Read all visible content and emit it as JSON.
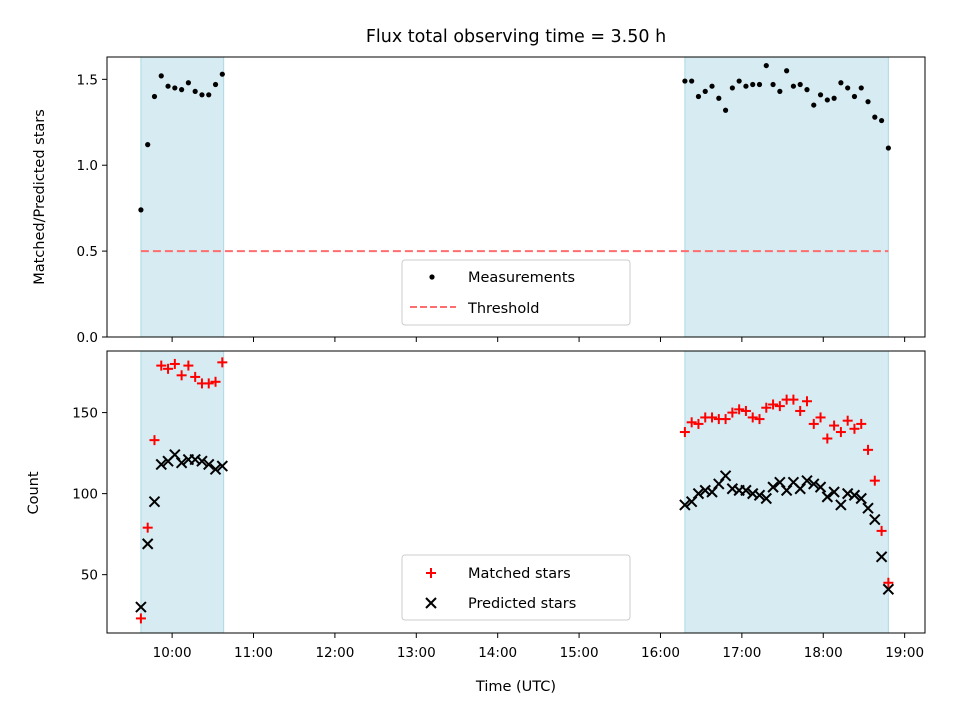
{
  "colors": {
    "shade": "#add8e6",
    "threshold": "#ff6e6e",
    "matched": "#ff0000",
    "predicted": "#000000",
    "measurement": "#000000"
  },
  "chart_data": [
    {
      "type": "scatter",
      "title": "Flux total observing time = 3.50 h",
      "ylabel": "Matched/Predicted stars",
      "xlabel": "",
      "xlim": [
        "09:12",
        "19:15"
      ],
      "ylim": [
        0,
        1.63
      ],
      "yticks": [
        0.0,
        0.5,
        1.0,
        1.5
      ],
      "ytick_labels": [
        "0.0",
        "0.5",
        "1.0",
        "1.5"
      ],
      "shaded_spans": [
        [
          "09:37",
          "10:38"
        ],
        [
          "16:18",
          "18:48"
        ]
      ],
      "legend_position": "lower center",
      "legend": [
        {
          "label": "Measurements",
          "marker": "dot"
        },
        {
          "label": "Threshold",
          "marker": "dashed-line"
        }
      ],
      "threshold": {
        "name": "Threshold",
        "y": 0.5,
        "x_from": "09:37",
        "x_to": "18:48"
      },
      "series": [
        {
          "name": "Measurements",
          "points": [
            [
              "09:37",
              0.74
            ],
            [
              "09:42",
              1.12
            ],
            [
              "09:47",
              1.4
            ],
            [
              "09:52",
              1.52
            ],
            [
              "09:57",
              1.46
            ],
            [
              "10:02",
              1.45
            ],
            [
              "10:07",
              1.44
            ],
            [
              "10:12",
              1.48
            ],
            [
              "10:17",
              1.43
            ],
            [
              "10:22",
              1.41
            ],
            [
              "10:27",
              1.41
            ],
            [
              "10:32",
              1.47
            ],
            [
              "10:37",
              1.53
            ],
            [
              "16:18",
              1.49
            ],
            [
              "16:23",
              1.49
            ],
            [
              "16:28",
              1.4
            ],
            [
              "16:33",
              1.43
            ],
            [
              "16:38",
              1.46
            ],
            [
              "16:43",
              1.39
            ],
            [
              "16:48",
              1.32
            ],
            [
              "16:53",
              1.45
            ],
            [
              "16:58",
              1.49
            ],
            [
              "17:03",
              1.46
            ],
            [
              "17:08",
              1.47
            ],
            [
              "17:13",
              1.47
            ],
            [
              "17:18",
              1.58
            ],
            [
              "17:23",
              1.47
            ],
            [
              "17:28",
              1.43
            ],
            [
              "17:33",
              1.55
            ],
            [
              "17:38",
              1.46
            ],
            [
              "17:43",
              1.47
            ],
            [
              "17:48",
              1.44
            ],
            [
              "17:53",
              1.35
            ],
            [
              "17:58",
              1.41
            ],
            [
              "18:03",
              1.38
            ],
            [
              "18:08",
              1.39
            ],
            [
              "18:13",
              1.48
            ],
            [
              "18:18",
              1.45
            ],
            [
              "18:23",
              1.4
            ],
            [
              "18:28",
              1.45
            ],
            [
              "18:33",
              1.37
            ],
            [
              "18:38",
              1.28
            ],
            [
              "18:43",
              1.26
            ],
            [
              "18:48",
              1.1
            ]
          ]
        }
      ]
    },
    {
      "type": "scatter",
      "title": "",
      "ylabel": "Count",
      "xlabel": "Time (UTC)",
      "xlim": [
        "09:12",
        "19:15"
      ],
      "ylim": [
        14,
        188
      ],
      "yticks": [
        50,
        100,
        150
      ],
      "ytick_labels": [
        "50",
        "100",
        "150"
      ],
      "xticks": [
        "10:00",
        "11:00",
        "12:00",
        "13:00",
        "14:00",
        "15:00",
        "16:00",
        "17:00",
        "18:00",
        "19:00"
      ],
      "shaded_spans": [
        [
          "09:37",
          "10:38"
        ],
        [
          "16:18",
          "18:48"
        ]
      ],
      "legend_position": "lower center",
      "legend": [
        {
          "label": "Matched stars",
          "marker": "plus"
        },
        {
          "label": "Predicted stars",
          "marker": "x"
        }
      ],
      "series": [
        {
          "name": "Matched stars",
          "points": [
            [
              "09:37",
              23
            ],
            [
              "09:42",
              79
            ],
            [
              "09:47",
              133
            ],
            [
              "09:52",
              179
            ],
            [
              "09:57",
              177
            ],
            [
              "10:02",
              180
            ],
            [
              "10:07",
              173
            ],
            [
              "10:12",
              179
            ],
            [
              "10:17",
              172
            ],
            [
              "10:22",
              168
            ],
            [
              "10:27",
              168
            ],
            [
              "10:32",
              169
            ],
            [
              "10:37",
              181
            ],
            [
              "16:18",
              138
            ],
            [
              "16:23",
              144
            ],
            [
              "16:28",
              143
            ],
            [
              "16:33",
              147
            ],
            [
              "16:38",
              147
            ],
            [
              "16:43",
              146
            ],
            [
              "16:48",
              146
            ],
            [
              "16:53",
              150
            ],
            [
              "16:58",
              152
            ],
            [
              "17:03",
              151
            ],
            [
              "17:08",
              147
            ],
            [
              "17:13",
              146
            ],
            [
              "17:18",
              153
            ],
            [
              "17:23",
              155
            ],
            [
              "17:28",
              154
            ],
            [
              "17:33",
              158
            ],
            [
              "17:38",
              158
            ],
            [
              "17:43",
              151
            ],
            [
              "17:48",
              157
            ],
            [
              "17:53",
              143
            ],
            [
              "17:58",
              147
            ],
            [
              "18:03",
              134
            ],
            [
              "18:08",
              142
            ],
            [
              "18:13",
              138
            ],
            [
              "18:18",
              145
            ],
            [
              "18:23",
              140
            ],
            [
              "18:28",
              143
            ],
            [
              "18:33",
              127
            ],
            [
              "18:38",
              108
            ],
            [
              "18:43",
              77
            ],
            [
              "18:48",
              45
            ]
          ]
        },
        {
          "name": "Predicted stars",
          "points": [
            [
              "09:37",
              30
            ],
            [
              "09:42",
              69
            ],
            [
              "09:47",
              95
            ],
            [
              "09:52",
              118
            ],
            [
              "09:57",
              120
            ],
            [
              "10:02",
              124
            ],
            [
              "10:07",
              119
            ],
            [
              "10:12",
              121
            ],
            [
              "10:17",
              121
            ],
            [
              "10:22",
              120
            ],
            [
              "10:27",
              118
            ],
            [
              "10:32",
              115
            ],
            [
              "10:37",
              117
            ],
            [
              "16:18",
              93
            ],
            [
              "16:23",
              95
            ],
            [
              "16:28",
              100
            ],
            [
              "16:33",
              102
            ],
            [
              "16:38",
              101
            ],
            [
              "16:43",
              106
            ],
            [
              "16:48",
              111
            ],
            [
              "16:53",
              103
            ],
            [
              "16:58",
              102
            ],
            [
              "17:03",
              102
            ],
            [
              "17:08",
              100
            ],
            [
              "17:13",
              99
            ],
            [
              "17:18",
              97
            ],
            [
              "17:23",
              104
            ],
            [
              "17:28",
              107
            ],
            [
              "17:33",
              102
            ],
            [
              "17:38",
              107
            ],
            [
              "17:43",
              103
            ],
            [
              "17:48",
              108
            ],
            [
              "17:53",
              106
            ],
            [
              "17:58",
              104
            ],
            [
              "18:03",
              98
            ],
            [
              "18:08",
              101
            ],
            [
              "18:13",
              93
            ],
            [
              "18:18",
              100
            ],
            [
              "18:23",
              99
            ],
            [
              "18:28",
              97
            ],
            [
              "18:33",
              91
            ],
            [
              "18:38",
              84
            ],
            [
              "18:43",
              61
            ],
            [
              "18:48",
              41
            ]
          ]
        }
      ]
    }
  ]
}
